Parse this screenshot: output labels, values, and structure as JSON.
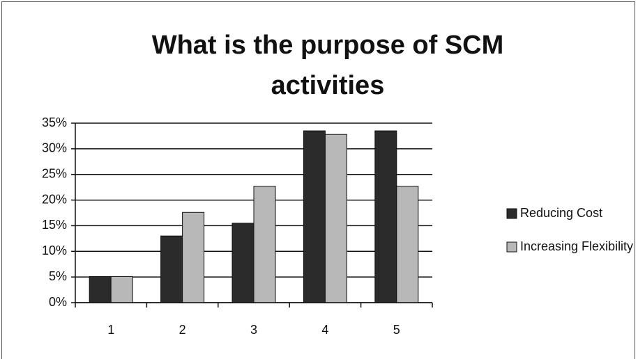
{
  "chart_data": {
    "type": "bar",
    "title": "What is the purpose of SCM activities",
    "categories": [
      "1",
      "2",
      "3",
      "4",
      "5"
    ],
    "series": [
      {
        "name": "Reducing Cost",
        "color": "#2b2b2b",
        "values": [
          5.1,
          13.0,
          15.5,
          33.5,
          33.5
        ]
      },
      {
        "name": "Increasing Flexibility",
        "color": "#b8b8b8",
        "values": [
          5.1,
          17.6,
          22.7,
          32.8,
          22.7
        ]
      }
    ],
    "ylim": [
      0,
      35
    ],
    "yticks": [
      {
        "value": 0,
        "label": "0%"
      },
      {
        "value": 5,
        "label": "5%"
      },
      {
        "value": 10,
        "label": "10%"
      },
      {
        "value": 15,
        "label": "15%"
      },
      {
        "value": 20,
        "label": "20%"
      },
      {
        "value": 25,
        "label": "25%"
      },
      {
        "value": 30,
        "label": "30%"
      },
      {
        "value": 35,
        "label": "35%"
      }
    ],
    "grid": true,
    "legend": "right"
  }
}
